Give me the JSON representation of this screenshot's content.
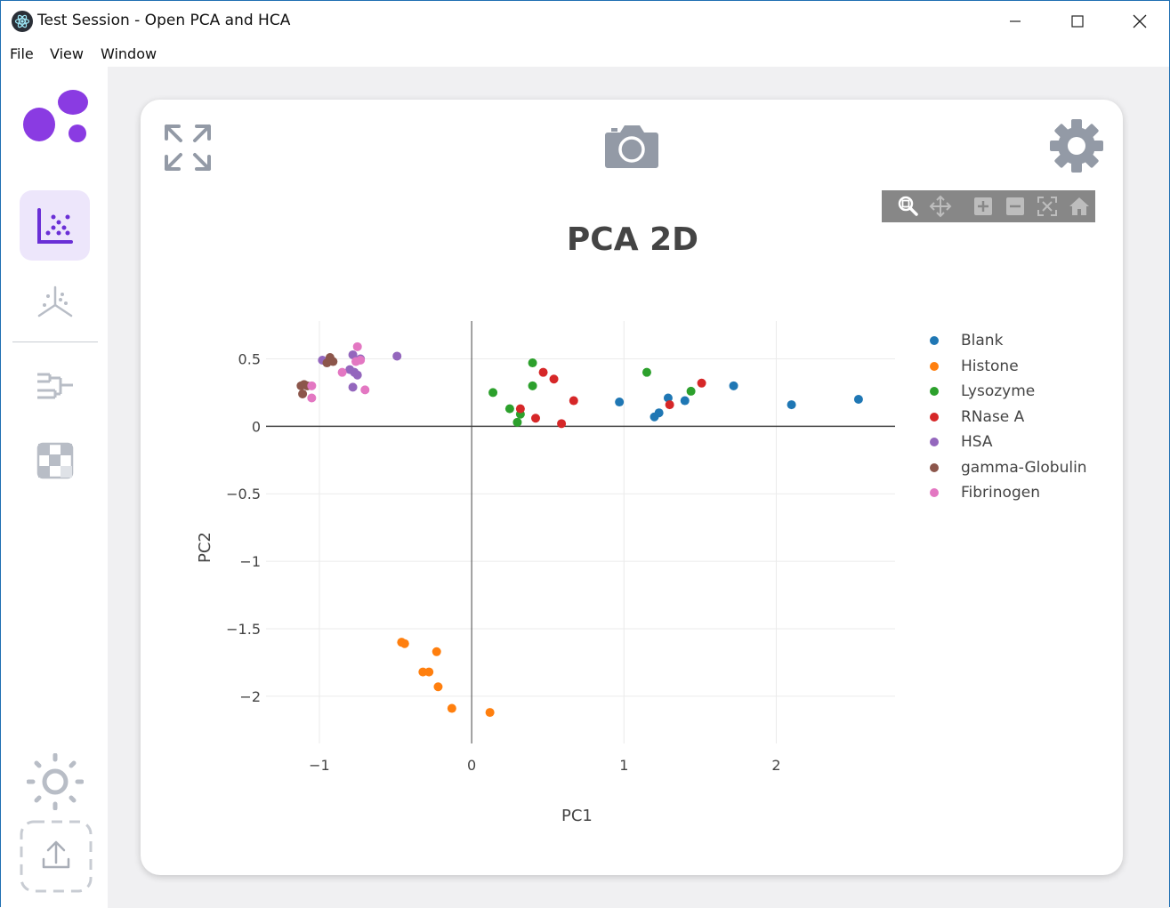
{
  "window": {
    "title": "Test Session - Open PCA and HCA",
    "minimize_label": "—",
    "maximize_label": "☐",
    "close_label": "✕"
  },
  "menu": {
    "items": [
      "File",
      "View",
      "Window"
    ]
  },
  "sidebar": {
    "logo_icon": "app-logo",
    "items": [
      {
        "icon": "scatter-plot-icon",
        "active": true
      },
      {
        "icon": "pca-3d-axes-icon",
        "active": false
      },
      {
        "icon": "dendrogram-icon",
        "active": false
      },
      {
        "icon": "heatmap-icon",
        "active": false
      }
    ],
    "bottom": [
      {
        "icon": "theme-sun-icon"
      },
      {
        "icon": "upload-icon"
      }
    ]
  },
  "card": {
    "expand_icon": "expand-icon",
    "camera_icon": "camera-icon",
    "settings_icon": "gear-icon"
  },
  "modebar": [
    "zoom-icon",
    "pan-icon",
    "zoom-in-icon",
    "zoom-out-icon",
    "autoscale-icon",
    "reset-axes-icon"
  ],
  "colors": {
    "accent": "#7b3fe4",
    "Blank": "#1f77b4",
    "Histone": "#ff7f0e",
    "Lysozyme": "#2ca02c",
    "RNase A": "#d62728",
    "HSA": "#9467bd",
    "gamma-Globulin": "#8c564b",
    "Fibrinogen": "#e377c2"
  },
  "chart_data": {
    "type": "scatter",
    "title": "PCA 2D",
    "xlabel": "PC1",
    "ylabel": "PC2",
    "xlim": [
      -1.35,
      2.78
    ],
    "ylim": [
      -2.35,
      0.78
    ],
    "xticks": [
      -1,
      0,
      1,
      2
    ],
    "xtick_labels": [
      "−1",
      "0",
      "1",
      "2"
    ],
    "yticks": [
      0.5,
      0,
      -0.5,
      -1,
      -1.5,
      -2
    ],
    "ytick_labels": [
      "0.5",
      "0",
      "−0.5",
      "−1",
      "−1.5",
      "−2"
    ],
    "grid": true,
    "legend_position": "right",
    "series": [
      {
        "name": "Blank",
        "points": [
          [
            0.97,
            0.18
          ],
          [
            1.2,
            0.07
          ],
          [
            1.23,
            0.1
          ],
          [
            1.29,
            0.21
          ],
          [
            1.4,
            0.19
          ],
          [
            1.72,
            0.3
          ],
          [
            2.1,
            0.16
          ],
          [
            2.54,
            0.2
          ]
        ]
      },
      {
        "name": "Histone",
        "points": [
          [
            -0.46,
            -1.6
          ],
          [
            -0.44,
            -1.61
          ],
          [
            -0.32,
            -1.82
          ],
          [
            -0.28,
            -1.82
          ],
          [
            -0.23,
            -1.67
          ],
          [
            -0.22,
            -1.93
          ],
          [
            -0.13,
            -2.09
          ],
          [
            0.12,
            -2.12
          ]
        ]
      },
      {
        "name": "Lysozyme",
        "points": [
          [
            0.14,
            0.25
          ],
          [
            0.25,
            0.13
          ],
          [
            0.3,
            0.03
          ],
          [
            0.32,
            0.09
          ],
          [
            0.4,
            0.47
          ],
          [
            0.4,
            0.3
          ],
          [
            1.15,
            0.4
          ],
          [
            1.44,
            0.26
          ]
        ]
      },
      {
        "name": "RNase A",
        "points": [
          [
            0.32,
            0.13
          ],
          [
            0.42,
            0.06
          ],
          [
            0.47,
            0.4
          ],
          [
            0.54,
            0.35
          ],
          [
            0.59,
            0.02
          ],
          [
            0.67,
            0.19
          ],
          [
            1.3,
            0.16
          ],
          [
            1.51,
            0.32
          ]
        ]
      },
      {
        "name": "HSA",
        "points": [
          [
            -0.98,
            0.49
          ],
          [
            -0.8,
            0.42
          ],
          [
            -0.78,
            0.53
          ],
          [
            -0.77,
            0.4
          ],
          [
            -0.75,
            0.38
          ],
          [
            -0.73,
            0.5
          ],
          [
            -0.49,
            0.52
          ],
          [
            -0.78,
            0.29
          ]
        ]
      },
      {
        "name": "gamma-Globulin",
        "points": [
          [
            -1.12,
            0.3
          ],
          [
            -1.1,
            0.31
          ],
          [
            -1.11,
            0.24
          ],
          [
            -0.95,
            0.47
          ],
          [
            -0.93,
            0.51
          ],
          [
            -0.91,
            0.48
          ],
          [
            -1.08,
            0.3
          ]
        ]
      },
      {
        "name": "Fibrinogen",
        "points": [
          [
            -1.05,
            0.3
          ],
          [
            -1.05,
            0.21
          ],
          [
            -0.85,
            0.4
          ],
          [
            -0.75,
            0.59
          ],
          [
            -0.76,
            0.48
          ],
          [
            -0.73,
            0.49
          ],
          [
            -0.7,
            0.27
          ]
        ]
      }
    ]
  }
}
